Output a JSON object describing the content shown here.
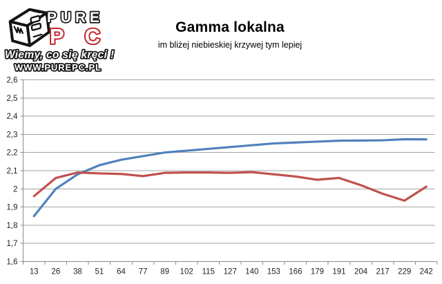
{
  "logo": {
    "brand_top": "PURE",
    "brand_bottom": "PC",
    "tagline": "Wiemy, co się kręci !",
    "url": "WWW.PUREPC.PL",
    "brand_red": "#c1272d",
    "outline_black": "#141414"
  },
  "header": {
    "title": "Gamma lokalna",
    "subtitle": "im bliżej niebieskiej krzywej tym lepiej"
  },
  "chart_data": {
    "type": "line",
    "title": "Gamma lokalna",
    "subtitle": "im bliżej niebieskiej krzywej tym lepiej",
    "categories": [
      "13",
      "26",
      "38",
      "51",
      "64",
      "77",
      "89",
      "102",
      "115",
      "127",
      "140",
      "153",
      "166",
      "179",
      "191",
      "204",
      "217",
      "229",
      "242"
    ],
    "series": [
      {
        "name": "blue-reference-curve",
        "color": "#4f81bd",
        "values": [
          1.85,
          2.0,
          2.08,
          2.13,
          2.16,
          2.18,
          2.2,
          2.21,
          2.22,
          2.23,
          2.24,
          2.25,
          2.255,
          2.26,
          2.265,
          2.266,
          2.267,
          2.273,
          2.272
        ]
      },
      {
        "name": "red-measured-curve",
        "color": "#c0504d",
        "values": [
          1.96,
          2.06,
          2.09,
          2.085,
          2.082,
          2.07,
          2.088,
          2.09,
          2.09,
          2.088,
          2.092,
          2.08,
          2.068,
          2.05,
          2.06,
          2.02,
          1.973,
          1.935,
          2.012
        ]
      }
    ],
    "ylim": [
      1.6,
      2.6
    ],
    "y_tick_step": 0.1,
    "y_ticks": [
      "2,6",
      "2,5",
      "2,4",
      "2,3",
      "2,2",
      "2,1",
      "2",
      "1,9",
      "1,8",
      "1,7",
      "1,6"
    ],
    "grid": true,
    "legend": "none",
    "colors": {
      "gridline": "#a3a3a3",
      "axis": "#8a8a8a",
      "tick_label": "#1f1f1f",
      "background": "#ffffff"
    }
  }
}
